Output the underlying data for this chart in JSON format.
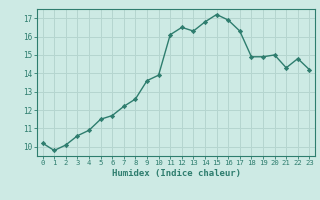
{
  "x": [
    0,
    1,
    2,
    3,
    4,
    5,
    6,
    7,
    8,
    9,
    10,
    11,
    12,
    13,
    14,
    15,
    16,
    17,
    18,
    19,
    20,
    21,
    22,
    23
  ],
  "y": [
    10.2,
    9.8,
    10.1,
    10.6,
    10.9,
    11.5,
    11.7,
    12.2,
    12.6,
    13.6,
    13.9,
    16.1,
    16.5,
    16.3,
    16.8,
    17.2,
    16.9,
    16.3,
    14.9,
    14.9,
    15.0,
    14.3,
    14.8,
    14.2
  ],
  "line_color": "#2e7d6e",
  "marker": "D",
  "marker_size": 2.2,
  "bg_color": "#cdeae4",
  "grid_color": "#b5d5cf",
  "xlabel": "Humidex (Indice chaleur)",
  "ylim": [
    9.5,
    17.5
  ],
  "xlim": [
    -0.5,
    23.5
  ],
  "yticks": [
    10,
    11,
    12,
    13,
    14,
    15,
    16,
    17
  ],
  "xticks": [
    0,
    1,
    2,
    3,
    4,
    5,
    6,
    7,
    8,
    9,
    10,
    11,
    12,
    13,
    14,
    15,
    16,
    17,
    18,
    19,
    20,
    21,
    22,
    23
  ],
  "axis_color": "#2e7d6e",
  "tick_color": "#2e7d6e",
  "label_color": "#2e7d6e",
  "line_width": 1.0
}
